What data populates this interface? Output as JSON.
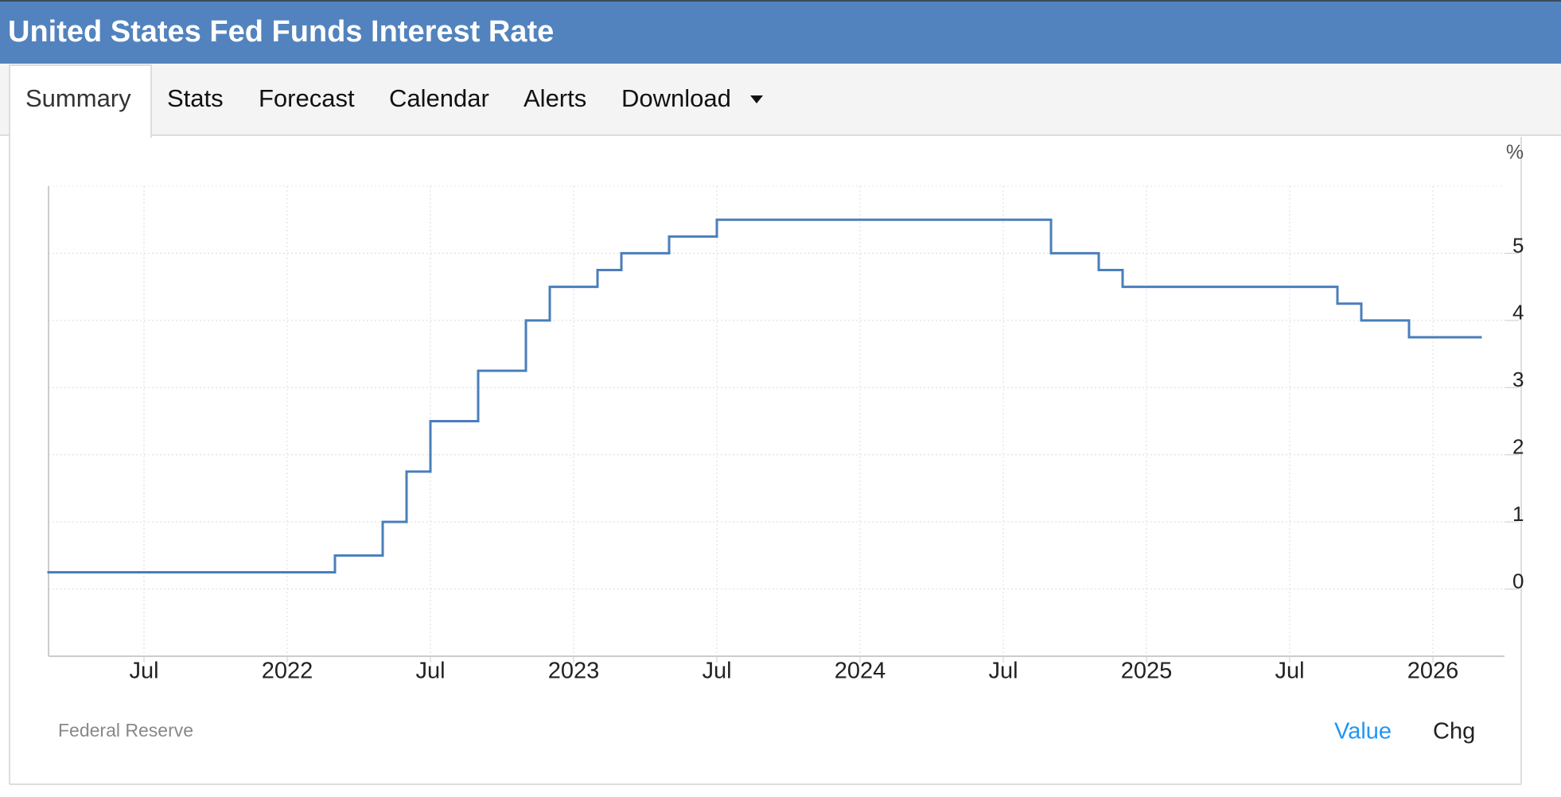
{
  "header": {
    "title": "United States Fed Funds Interest Rate"
  },
  "tabs": [
    "Summary",
    "Stats",
    "Forecast",
    "Calendar",
    "Alerts",
    "Download"
  ],
  "active_tab": 0,
  "chart_data": {
    "type": "step-line",
    "ylabel": "%",
    "x": [
      "2021-03",
      "2022-03",
      "2022-05",
      "2022-06",
      "2022-07",
      "2022-09",
      "2022-11",
      "2022-12",
      "2023-02",
      "2023-03",
      "2023-05",
      "2023-07",
      "2024-09",
      "2024-11",
      "2024-12",
      "2025-09",
      "2025-10",
      "2025-12",
      "2026-03"
    ],
    "series": [
      {
        "color": "#4a7ebb",
        "values": [
          0.25,
          0.5,
          1,
          1.75,
          2.5,
          3.25,
          4,
          4.5,
          4.75,
          5,
          5.25,
          5.5,
          5,
          4.75,
          4.5,
          4.25,
          4,
          3.75,
          3.75
        ]
      }
    ],
    "xlim": [
      "2021-03",
      "2026-04"
    ],
    "xticks": [
      {
        "value": "2021-07",
        "label": "Jul"
      },
      {
        "value": "2022-01",
        "label": "2022"
      },
      {
        "value": "2022-07",
        "label": "Jul"
      },
      {
        "value": "2023-01",
        "label": "2023"
      },
      {
        "value": "2023-07",
        "label": "Jul"
      },
      {
        "value": "2024-01",
        "label": "2024"
      },
      {
        "value": "2024-07",
        "label": "Jul"
      },
      {
        "value": "2025-01",
        "label": "2025"
      },
      {
        "value": "2025-07",
        "label": "Jul"
      },
      {
        "value": "2026-01",
        "label": "2026"
      }
    ],
    "ylim": [
      -1,
      6
    ],
    "yticks": [
      0,
      1,
      2,
      3,
      4,
      5
    ],
    "grid": true
  },
  "source": "Federal Reserve",
  "view_buttons": [
    "Value",
    "Chg"
  ],
  "active_view": 0
}
